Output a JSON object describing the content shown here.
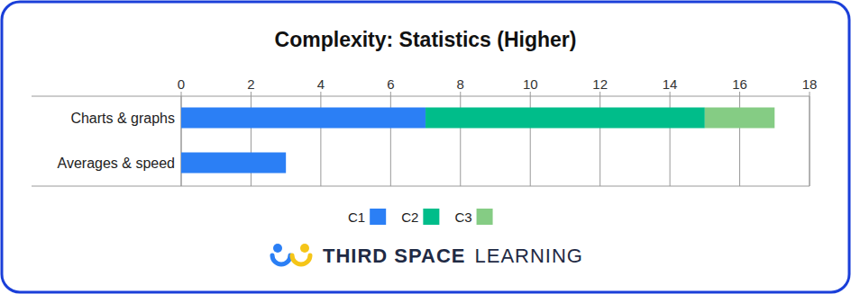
{
  "chart_data": {
    "type": "bar",
    "orientation": "horizontal",
    "stacked": true,
    "title": "Complexity: Statistics (Higher)",
    "categories": [
      "Charts & graphs",
      "Averages & speed"
    ],
    "series": [
      {
        "name": "C1",
        "color": "#2b7ff5",
        "values": [
          7,
          3
        ]
      },
      {
        "name": "C2",
        "color": "#00bd8a",
        "values": [
          8,
          0
        ]
      },
      {
        "name": "C3",
        "color": "#85cc84",
        "values": [
          2,
          0
        ]
      }
    ],
    "xlim": [
      0,
      18
    ],
    "xticks": [
      0,
      2,
      4,
      6,
      8,
      10,
      12,
      14,
      16,
      18
    ],
    "grid": true,
    "legend": "bottom",
    "annotations": [
      "THIRD SPACE",
      "LEARNING"
    ]
  }
}
